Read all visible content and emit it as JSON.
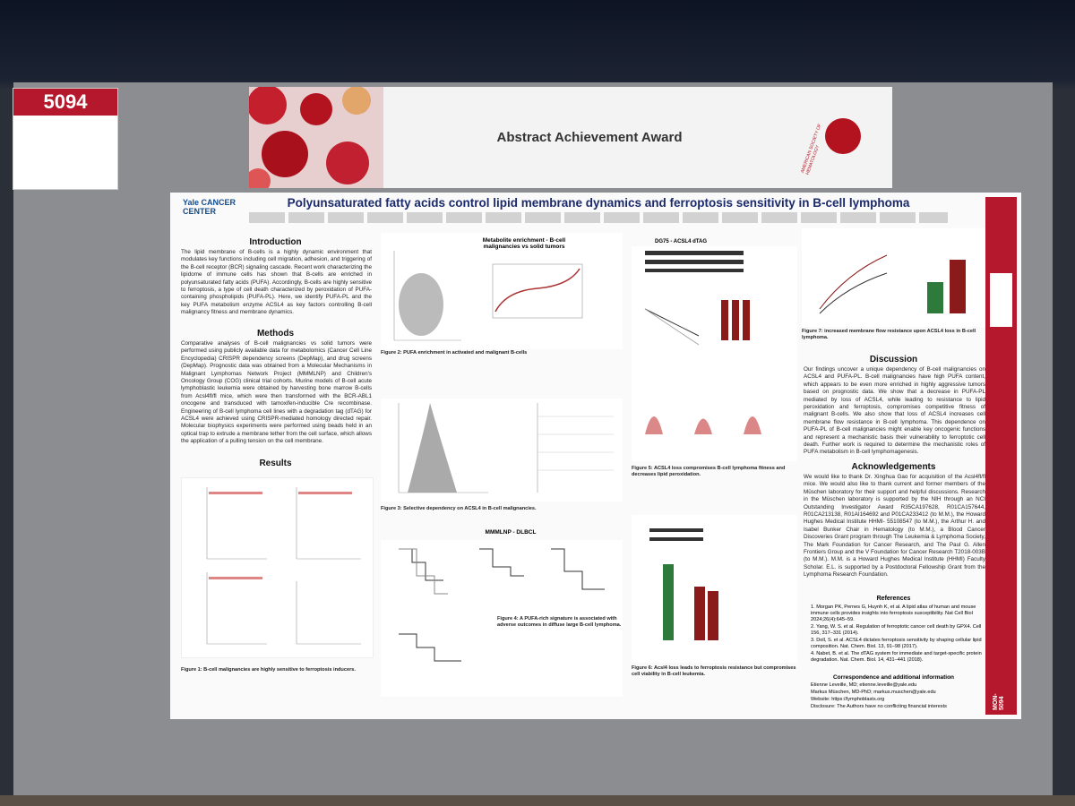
{
  "sign": {
    "number": "5094"
  },
  "banner": {
    "title": "Abstract Achievement Award",
    "society": "AMERICAN SOCIETY OF HEMATOLOGY"
  },
  "poster": {
    "institution": "Yale CANCER CENTER",
    "title": "Polyunsaturated fatty acids control lipid membrane dynamics and ferroptosis sensitivity in B-cell lymphoma",
    "introduction": {
      "heading": "Introduction",
      "text": "The lipid membrane of B-cells is a highly dynamic environment that modulates key functions including cell migration, adhesion, and triggering of the B-cell receptor (BCR) signaling cascade. Recent work characterizing the lipidome of immune cells has shown that B-cells are enriched in polyunsaturated fatty acids (PUFA). Accordingly, B-cells are highly sensitive to ferroptosis, a type of cell death characterized by peroxidation of PUFA-containing phospholipids (PUFA-PL). Here, we identify PUFA-PL and the key PUFA metabolism enzyme ACSL4 as key factors controlling B-cell malignancy fitness and membrane dynamics."
    },
    "methods": {
      "heading": "Methods",
      "text": "Comparative analyses of B-cell malignancies vs solid tumors were performed using publicly available data for metabolomics (Cancer Cell Line Encyclopedia) CRISPR dependency screens (DepMap), and drug screens (DepMap). Prognostic data was obtained from a Molecular Mechanisms in Malignant Lymphomas Network Project (MMMLNP) and Children's Oncology Group (COG) clinical trial cohorts. Murine models of B-cell acute lymphoblastic leukemia were obtained by harvesting bone marrow B-cells from Acsl4fl/fl mice, which were then transformed with the BCR-ABL1 oncogene and transduced with tamoxifen-inducible Cre recombinase. Engineering of B-cell lymphoma cell lines with a degradation tag (dTAG) for ACSL4 were achieved using CRISPR-mediated homology directed repair. Molecular biophysics experiments were performed using beads held in an optical trap to extrude a membrane tether from the cell surface, which allows the application of a pulling tension on the cell membrane."
    },
    "results": {
      "heading": "Results"
    },
    "figures": {
      "fig1": "Figure 1: B-cell malignancies are highly sensitive to ferroptosis inducers.",
      "fig2": "Figure 2: PUFA enrichment in activated and malignant B-cells",
      "fig2_title": "Metabolite enrichment - B-cell malignancies vs solid tumors",
      "fig3": "Figure 3: Selective dependency on ACSL4 in B-cell malignancies.",
      "fig4_title": "MMMLNP - DLBCL",
      "fig4": "Figure 4: A PUFA-rich signature is associated with adverse outcomes in diffuse large B-cell lymphoma.",
      "fig5_title": "DG75 - ACSL4 dTAG",
      "fig5": "Figure 5: ACSL4 loss compromises B-cell lymphoma fitness and decreases lipid peroxidation.",
      "fig6": "Figure 6: Acsl4 loss leads to ferroptosis resistance but compromises cell viability in B-cell leukemia.",
      "fig7": "Figure 7: increased membrane flow resistance upon ACSL4 loss in B-cell lymphoma."
    },
    "discussion": {
      "heading": "Discussion",
      "text": "Our findings uncover a unique dependency of B-cell malignancies on ACSL4 and PUFA-PL. B-cell malignancies have high PUFA content, which appears to be even more enriched in highly aggressive tumors based on prognostic data. We show that a decrease in PUFA-PL mediated by loss of ACSL4, while leading to resistance to lipid peroxidation and ferroptosis, compromises competitive fitness of malignant B-cells. We also show that loss of ACSL4 increases cell membrane flow resistance in B-cell lymphoma. This dependence on PUFA-PL of B-cell malignancies might enable key oncogenic functions and represent a mechanistic basis their vulnerability to ferroptotic cell death. Further work is required to determine the mechanistic roles of PUFA metabolism in B-cell lymphomagenesis."
    },
    "acknowledgements": {
      "heading": "Acknowledgements",
      "text": "We would like to thank Dr. Xinghua Gao for acquisition of the Acsl4fl/fl mice. We would also like to thank current and former members of the Müschen laboratory for their support and helpful discussions. Research in the Müschen laboratory is supported by the NIH through an NCI Outstanding Investigator Award R35CA197628, R01CA157644, R01CA213138, R01AI164692 and P01CA233412 (to M.M.), the Howard Hughes Medical Institute HHMI- 55108547 (to M.M.), the Arthur H. and Isabel Bunker Chair in Hematology (to M.M.), a Blood Cancer Discoveries Grant program through The Leukemia & Lymphoma Society, The Mark Foundation for Cancer Research, and The Paul G. Allen Frontiers Group and the V Foundation for Cancer Research T2018-003B (to M.M.). M.M. is a Howard Hughes Medical Institute (HHMI) Faculty Scholar. E.L. is supported by a Postdoctoral Fellowship Grant from the Lymphoma Research Foundation."
    },
    "references": {
      "heading": "References",
      "items": [
        "1. Morgan PK, Pernes G, Huynh K, et al. A lipid atlas of human and mouse immune cells provides insights into ferroptosis susceptibility. Nat Cell Biol 2024;26(4):645–59.",
        "2. Yang, W. S. et al. Regulation of ferroptotic cancer cell death by GPX4. Cell 156, 317–331 (2014).",
        "3. Doll, S. et al. ACSL4 dictates ferroptosis sensitivity by shaping cellular lipid composition. Nat. Chem. Biol. 13, 91–98 (2017).",
        "4. Nabet, B. et al. The dTAG system for immediate and target-specific protein degradation. Nat. Chem. Biol. 14, 431–441 (2018)."
      ]
    },
    "correspondence": {
      "heading": "Correspondence and additional information",
      "lines": [
        "Etienne Leveille, MD; etienne.leveille@yale.edu",
        "Markus Müschen, MD-PhD; markus.muschen@yale.edu",
        "Website: https://lymphoblasts.org",
        "Disclosure: The Authors have no conflicting financial interests"
      ]
    },
    "poster_id": "MON-5094"
  }
}
